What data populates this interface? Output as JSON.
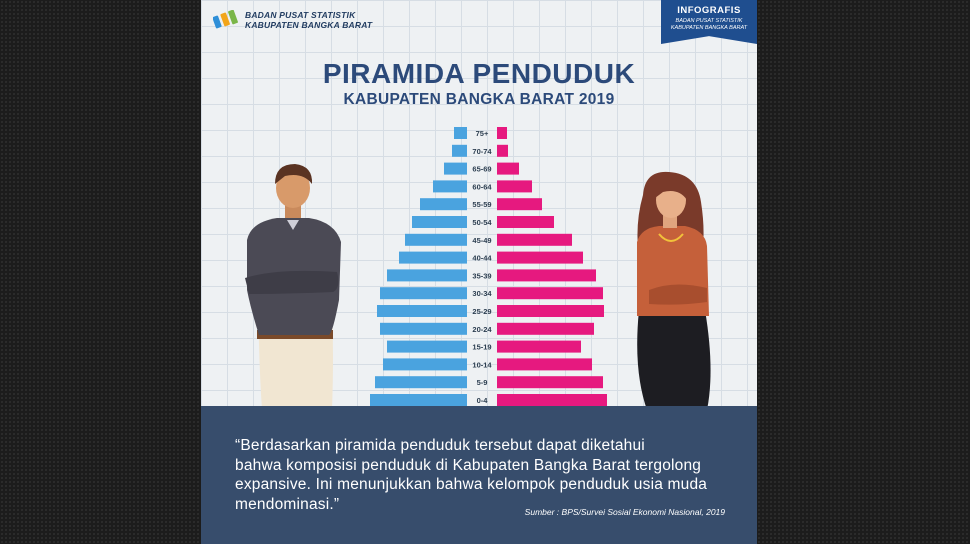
{
  "header": {
    "org_line1": "BADAN PUSAT STATISTIK",
    "org_line2": "KABUPATEN BANGKA BARAT",
    "ribbon_title": "INFOGRAFIS",
    "ribbon_sub_line1": "BADAN PUSAT STATISTIK",
    "ribbon_sub_line2": "KABUPATEN BANGKA BARAT"
  },
  "chart_data": {
    "type": "bar",
    "orientation": "horizontal-population-pyramid",
    "title": "PIRAMIDA PENDUDUK",
    "subtitle": "KABUPATEN BANGKA BARAT 2019",
    "categories": [
      "75+",
      "70-74",
      "65-69",
      "60-64",
      "55-59",
      "50-54",
      "45-49",
      "40-44",
      "35-39",
      "30-34",
      "25-29",
      "20-24",
      "15-19",
      "10-14",
      "5-9",
      "0-4"
    ],
    "series": [
      {
        "values": [
          13,
          15,
          23,
          34,
          47,
          55,
          62,
          68,
          80,
          87,
          90,
          87,
          80,
          84,
          92,
          97
        ],
        "color": "#4aa3df"
      },
      {
        "values": [
          10,
          11,
          22,
          35,
          45,
          57,
          75,
          86,
          99,
          106,
          107,
          97,
          84,
          95,
          106,
          110
        ],
        "color": "#e6197f"
      }
    ],
    "xlim": [
      0,
      115
    ],
    "grid": false,
    "legend": "none"
  },
  "quote": {
    "line1": "“Berdasarkan piramida penduduk tersebut dapat diketahui",
    "line2": "bahwa komposisi penduduk di Kabupaten Bangka Barat tergolong",
    "line3": "expansive. Ini menunjukkan bahwa kelompok penduduk usia muda",
    "line4": "mendominasi.”"
  },
  "source": "Sumber : BPS/Survei Sosial Ekonomi Nasional, 2019",
  "colors": {
    "male": "#4aa3df",
    "female": "#e6197f",
    "title": "#2c4a7a",
    "footer_bg": "#374d6c",
    "ribbon": "#1f4e8f"
  }
}
